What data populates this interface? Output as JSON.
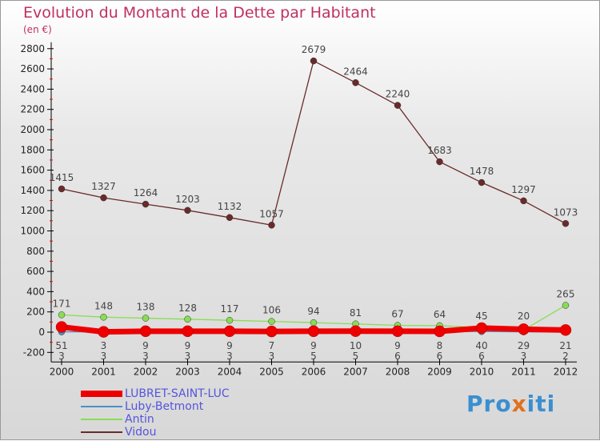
{
  "chart_data": {
    "type": "line",
    "title": "Evolution du Montant de la Dette par Habitant",
    "ylabel": "(en €)",
    "xlabel": "",
    "ylim": [
      -200,
      2800
    ],
    "yticks": [
      -200,
      0,
      200,
      400,
      600,
      800,
      1000,
      1200,
      1400,
      1600,
      1800,
      2000,
      2200,
      2400,
      2600,
      2800
    ],
    "x": [
      2000,
      2001,
      2002,
      2003,
      2004,
      2005,
      2006,
      2007,
      2008,
      2009,
      2010,
      2011,
      2012
    ],
    "legend_position": "bottom-left",
    "series": [
      {
        "name": "LUBRET-SAINT-LUC",
        "color": "#ee0000",
        "values": [
          51,
          3,
          9,
          9,
          9,
          7,
          9,
          10,
          9,
          8,
          40,
          29,
          21
        ]
      },
      {
        "name": "Luby-Betmont",
        "color": "#4a90c8",
        "values": [
          3,
          3,
          3,
          3,
          3,
          3,
          5,
          5,
          6,
          6,
          6,
          3,
          2
        ]
      },
      {
        "name": "Antin",
        "color": "#88dd55",
        "values": [
          171,
          148,
          138,
          128,
          117,
          106,
          94,
          81,
          67,
          64,
          45,
          20,
          265
        ]
      },
      {
        "name": "Vidou",
        "color": "#6b2a2a",
        "values": [
          1415,
          1327,
          1264,
          1203,
          1132,
          1057,
          2679,
          2464,
          2240,
          1683,
          1478,
          1297,
          1073
        ]
      }
    ]
  }
}
